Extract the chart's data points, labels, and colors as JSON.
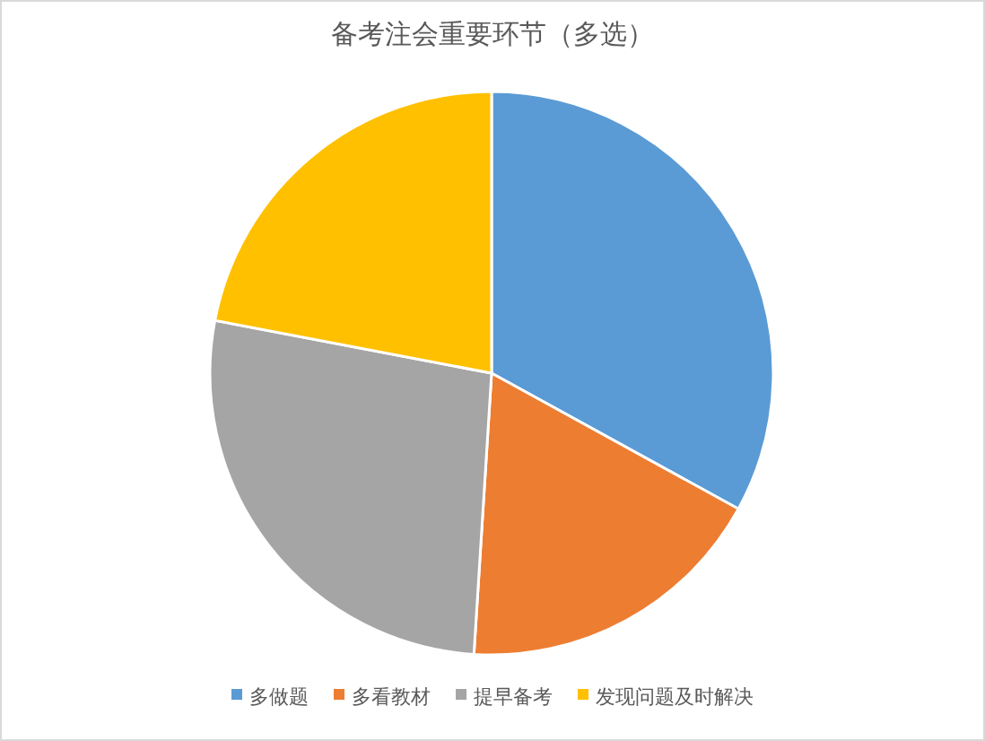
{
  "chart_data": {
    "type": "pie",
    "title": "备考注会重要环节（多选）",
    "categories": [
      "多做题",
      "多看教材",
      "提早备考",
      "发现问题及时解决"
    ],
    "values": [
      33,
      18,
      27,
      22
    ],
    "colors": [
      "#5b9bd5",
      "#ed7d31",
      "#a5a5a5",
      "#ffc000"
    ],
    "legend": "bottom"
  }
}
